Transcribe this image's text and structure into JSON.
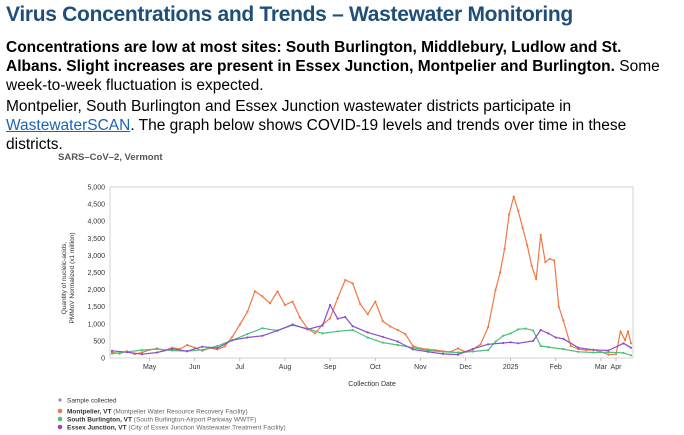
{
  "page": {
    "title": "Virus Concentrations and Trends – Wastewater Monitoring",
    "para1_bold": "Concentrations are low at most sites: South Burlington, Middlebury, Ludlow and St. Albans.  Slight increases are present in Essex Junction, Montpelier and Burlington.",
    "para1_rest": " Some week-to-week fluctuation is expected.",
    "para2_before": "Montpelier, South Burlington and Essex Junction wastewater districts participate in ",
    "para2_link": "WastewaterSCAN",
    "para2_after": ". The graph below shows COVID-19 levels and trends over time in these districts."
  },
  "chart_data": {
    "type": "line",
    "title": "SARS–CoV–2, Vermont",
    "xlabel": "Collection Date",
    "ylabel_line1": "Quantity of nucleic-acids,",
    "ylabel_line2": "PMMoV Normalized (x1 million)",
    "ylim": [
      0,
      5000
    ],
    "yticks": [
      0,
      500,
      1000,
      1500,
      2000,
      2500,
      3000,
      3500,
      4000,
      4500,
      5000
    ],
    "ytick_labels": [
      "0",
      "500",
      "1,000",
      "1,500",
      "2,000",
      "2,500",
      "3,000",
      "3,500",
      "4,000",
      "4,500",
      "5,000"
    ],
    "xlim": [
      0,
      345
    ],
    "x_unit": "days since Apr 1",
    "xticks": [
      {
        "label": "May",
        "x": 25
      },
      {
        "label": "Jun",
        "x": 55
      },
      {
        "label": "Jul",
        "x": 85
      },
      {
        "label": "Aug",
        "x": 115
      },
      {
        "label": "Sep",
        "x": 145
      },
      {
        "label": "Oct",
        "x": 175
      },
      {
        "label": "Nov",
        "x": 205
      },
      {
        "label": "Dec",
        "x": 235
      },
      {
        "label": "2025",
        "x": 265
      },
      {
        "label": "Feb",
        "x": 295
      },
      {
        "label": "Mar",
        "x": 325
      },
      {
        "label": "Apr",
        "x": 350
      }
    ],
    "legend_marker_label": "Sample collected",
    "legend_marker_color": "#8a8fd8",
    "grid": false,
    "legend_position": "bottom-left",
    "series": [
      {
        "name": "Montpelier, VT",
        "detail": "(Montpelier Water Resource Recovery Facility)",
        "color": "#f07845",
        "x": [
          0,
          5,
          10,
          15,
          20,
          25,
          30,
          35,
          40,
          45,
          50,
          55,
          60,
          65,
          70,
          75,
          80,
          85,
          90,
          95,
          100,
          105,
          110,
          115,
          120,
          125,
          130,
          135,
          140,
          145,
          150,
          155,
          160,
          165,
          170,
          175,
          180,
          185,
          190,
          195,
          200,
          205,
          210,
          215,
          220,
          225,
          230,
          235,
          240,
          245,
          250,
          255,
          258,
          261,
          264,
          267,
          270,
          273,
          276,
          279,
          282,
          285,
          288,
          291,
          294,
          297,
          300,
          305,
          310,
          315,
          320,
          325,
          330,
          335,
          338,
          341,
          343,
          345
        ],
        "y": [
          170,
          130,
          200,
          110,
          160,
          240,
          280,
          220,
          300,
          260,
          380,
          300,
          210,
          290,
          250,
          340,
          620,
          980,
          1350,
          1950,
          1800,
          1600,
          1950,
          1550,
          1650,
          1180,
          860,
          720,
          980,
          1160,
          1750,
          2280,
          2180,
          1580,
          1280,
          1650,
          1080,
          920,
          820,
          700,
          350,
          280,
          250,
          230,
          200,
          180,
          280,
          180,
          250,
          400,
          900,
          2000,
          2500,
          3200,
          4200,
          4720,
          4300,
          3800,
          3300,
          2700,
          2300,
          3600,
          2800,
          2900,
          2850,
          1500,
          1100,
          350,
          260,
          230,
          240,
          180,
          100,
          110,
          780,
          520,
          780,
          430
        ]
      },
      {
        "name": "South Burlington, VT",
        "detail": "(South Burlington-Airport Parkway WWTF)",
        "color": "#4cbf7a",
        "x": [
          0,
          10,
          20,
          30,
          40,
          50,
          60,
          70,
          80,
          90,
          100,
          110,
          120,
          130,
          140,
          150,
          160,
          170,
          180,
          190,
          200,
          210,
          220,
          230,
          240,
          250,
          255,
          260,
          265,
          270,
          275,
          280,
          285,
          290,
          300,
          310,
          320,
          330,
          340,
          345
        ],
        "y": [
          130,
          180,
          230,
          260,
          220,
          200,
          240,
          350,
          520,
          700,
          870,
          800,
          960,
          860,
          720,
          780,
          820,
          600,
          450,
          380,
          300,
          220,
          180,
          160,
          190,
          230,
          480,
          650,
          720,
          840,
          860,
          800,
          350,
          320,
          260,
          180,
          160,
          170,
          150,
          80
        ]
      },
      {
        "name": "Essex Junction, VT",
        "detail": "(City of Essex Junction Wastewater Treatment Facility)",
        "color": "#8a4fc8",
        "x": [
          0,
          10,
          20,
          30,
          40,
          50,
          60,
          70,
          80,
          90,
          100,
          110,
          120,
          130,
          140,
          145,
          150,
          155,
          160,
          170,
          180,
          190,
          200,
          210,
          220,
          230,
          240,
          250,
          260,
          265,
          270,
          280,
          285,
          290,
          295,
          300,
          310,
          320,
          330,
          340,
          345
        ],
        "y": [
          210,
          170,
          110,
          160,
          270,
          200,
          330,
          290,
          520,
          600,
          650,
          800,
          980,
          840,
          950,
          1550,
          1150,
          1200,
          930,
          750,
          620,
          480,
          250,
          180,
          120,
          100,
          270,
          400,
          440,
          460,
          430,
          500,
          820,
          720,
          600,
          560,
          300,
          240,
          220,
          430,
          300
        ]
      }
    ]
  }
}
